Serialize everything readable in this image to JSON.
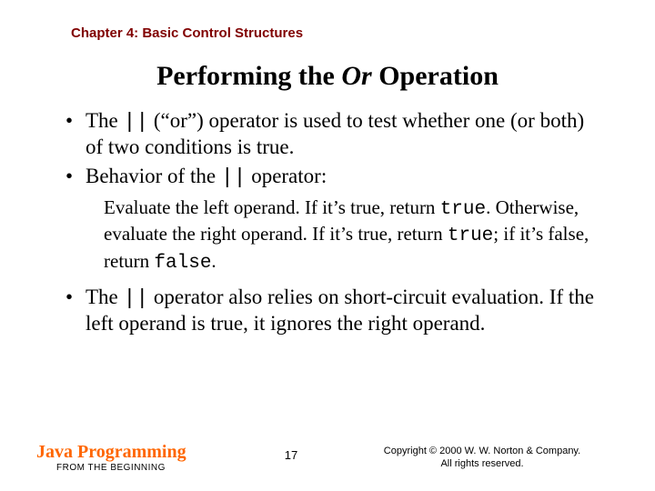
{
  "chapter": "Chapter 4: Basic Control Structures",
  "title": {
    "pre": "Performing the ",
    "italic": "Or",
    "post": " Operation"
  },
  "bullets": {
    "b1": {
      "pre": "The ",
      "code": "||",
      "post": " (“or”) operator is used to test whether one (or both) of two conditions is true."
    },
    "b2": {
      "pre": "Behavior of the ",
      "code": "||",
      "post": " operator:"
    },
    "sub": {
      "s1": "Evaluate the left operand. If it’s true, return ",
      "c1": "true",
      "s2": ". Otherwise, evaluate the right operand. If it’s true, return ",
      "c2": "true",
      "s3": "; if it’s false, return ",
      "c3": "false",
      "s4": "."
    },
    "b3": {
      "pre": "The ",
      "code": "||",
      "post": " operator also relies on short-circuit evaluation. If the left operand is true, it ignores the right operand."
    }
  },
  "footer": {
    "brand_main": "Java Programming",
    "brand_sub": "FROM THE BEGINNING",
    "page": "17",
    "copy1": "Copyright © 2000 W. W. Norton & Company.",
    "copy2": "All rights reserved."
  },
  "colors": {
    "chapter": "#800000",
    "brand": "#ff6600",
    "text": "#000000",
    "background": "#ffffff"
  }
}
